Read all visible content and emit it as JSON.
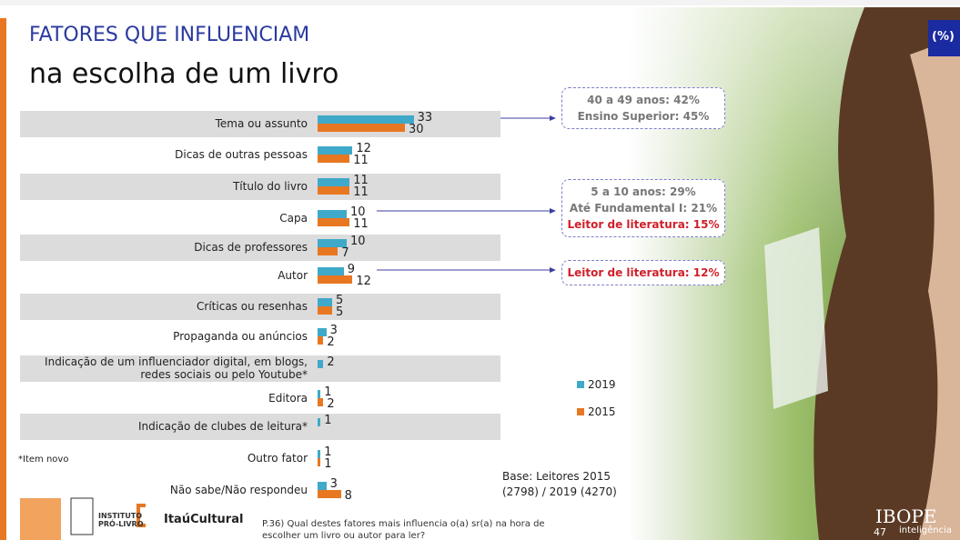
{
  "chart_data": {
    "type": "bar",
    "orientation": "horizontal",
    "title": "FATORES QUE INFLUENCIAM",
    "subtitle": "na escolha de um livro",
    "unit_label": "(%)",
    "categories": [
      "Tema ou assunto",
      "Dicas de outras pessoas",
      "Título do livro",
      "Capa",
      "Dicas de professores",
      "Autor",
      "Críticas ou resenhas",
      "Propaganda ou anúncios",
      "Indicação de um influenciador digital, em blogs,\nredes sociais ou pelo Youtube*",
      "Editora",
      "Indicação de clubes de leitura*",
      "Outro fator",
      "Não sabe/Não respondeu"
    ],
    "series": [
      {
        "name": "2019",
        "color": "#3fa9c9",
        "values": [
          33,
          12,
          11,
          10,
          10,
          9,
          5,
          3,
          2,
          1,
          1,
          1,
          3
        ]
      },
      {
        "name": "2015",
        "color": "#e87722",
        "values": [
          30,
          11,
          11,
          11,
          7,
          12,
          5,
          2,
          null,
          2,
          null,
          1,
          8
        ]
      }
    ],
    "annotations": [
      {
        "lines": [
          {
            "text": "40 a 49 anos: 42%",
            "color": "#777777"
          },
          {
            "text": "Ensino Superior: 45%",
            "color": "#777777"
          }
        ]
      },
      {
        "lines": [
          {
            "text": "5 a 10 anos: 29%",
            "color": "#777777"
          },
          {
            "text": "Até Fundamental I: 21%",
            "color": "#777777"
          },
          {
            "text": "Leitor de literatura: 15%",
            "color": "#d0202a"
          }
        ]
      },
      {
        "lines": [
          {
            "text": "Leitor de literatura: 12%",
            "color": "#d0202a"
          }
        ]
      }
    ],
    "note": "*Item novo",
    "base": "Base: Leitores 2015\n(2798) / 2019 (4270)",
    "question": "P.36) Qual destes fatores mais influencia o(a) sr(a) na hora de\nescolher um livro ou autor para ler?",
    "logos": [
      "INSTITUTO\nPRÓ-LIVRO",
      "ItaúCultural"
    ],
    "brand": "IBOPE",
    "brand_sub": "inteligência",
    "page_number": "47"
  }
}
